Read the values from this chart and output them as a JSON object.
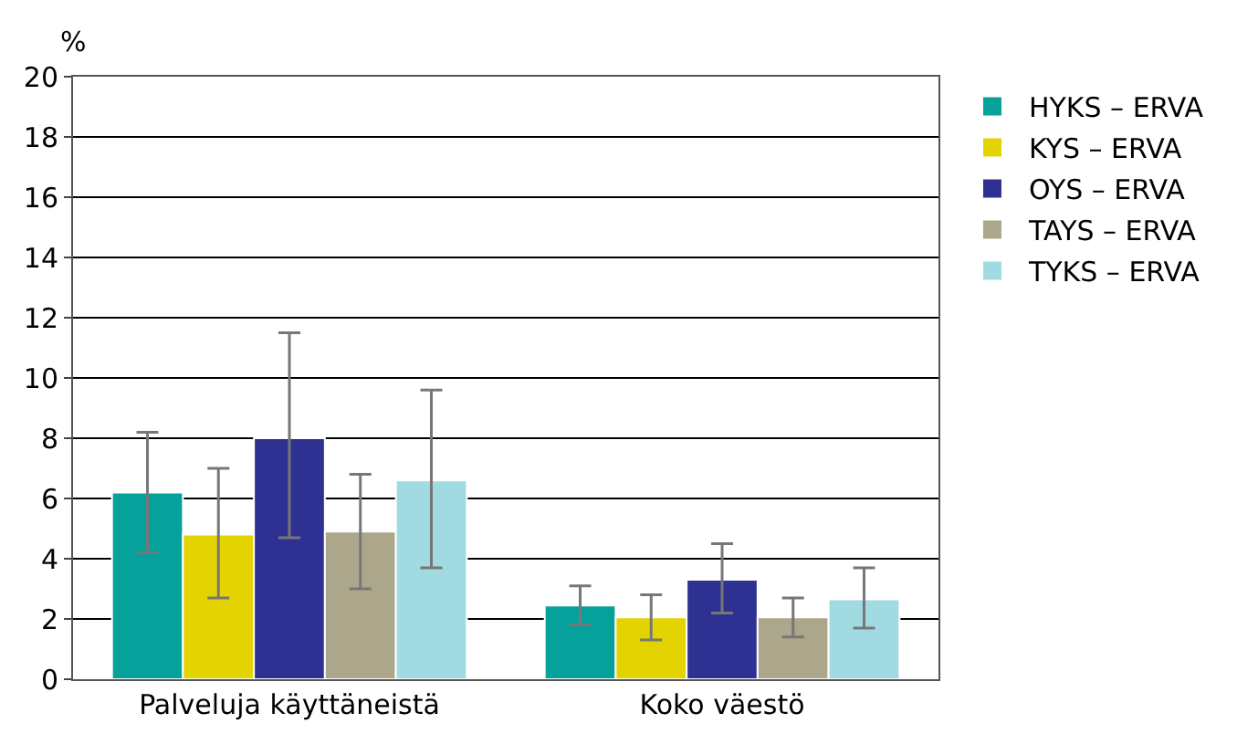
{
  "chart_data": {
    "type": "bar",
    "ylabel": "%",
    "categories": [
      "Palveluja käyttäneistä",
      "Koko väestö"
    ],
    "series": [
      {
        "name": "HYKS – ERVA",
        "color": "#07a19b",
        "values": [
          6.2,
          2.45
        ],
        "errors": [
          [
            4.2,
            8.2
          ],
          [
            1.8,
            3.1
          ]
        ]
      },
      {
        "name": "KYS – ERVA",
        "color": "#e3d300",
        "values": [
          4.8,
          2.05
        ],
        "errors": [
          [
            2.7,
            7.0
          ],
          [
            1.3,
            2.8
          ]
        ]
      },
      {
        "name": "OYS – ERVA",
        "color": "#2e3192",
        "values": [
          8.0,
          3.3
        ],
        "errors": [
          [
            4.7,
            11.5
          ],
          [
            2.2,
            4.5
          ]
        ]
      },
      {
        "name": "TAYS – ERVA",
        "color": "#aca68a",
        "values": [
          4.9,
          2.05
        ],
        "errors": [
          [
            3.0,
            6.8
          ],
          [
            1.4,
            2.7
          ]
        ]
      },
      {
        "name": "TYKS – ERVA",
        "color": "#a1dae1",
        "values": [
          6.6,
          2.65
        ],
        "errors": [
          [
            3.7,
            9.6
          ],
          [
            1.7,
            3.7
          ]
        ]
      }
    ],
    "ylim": [
      0,
      20
    ],
    "yticks": [
      0,
      2,
      4,
      6,
      8,
      10,
      12,
      14,
      16,
      18,
      20
    ],
    "grid": "y",
    "legend": "right"
  }
}
